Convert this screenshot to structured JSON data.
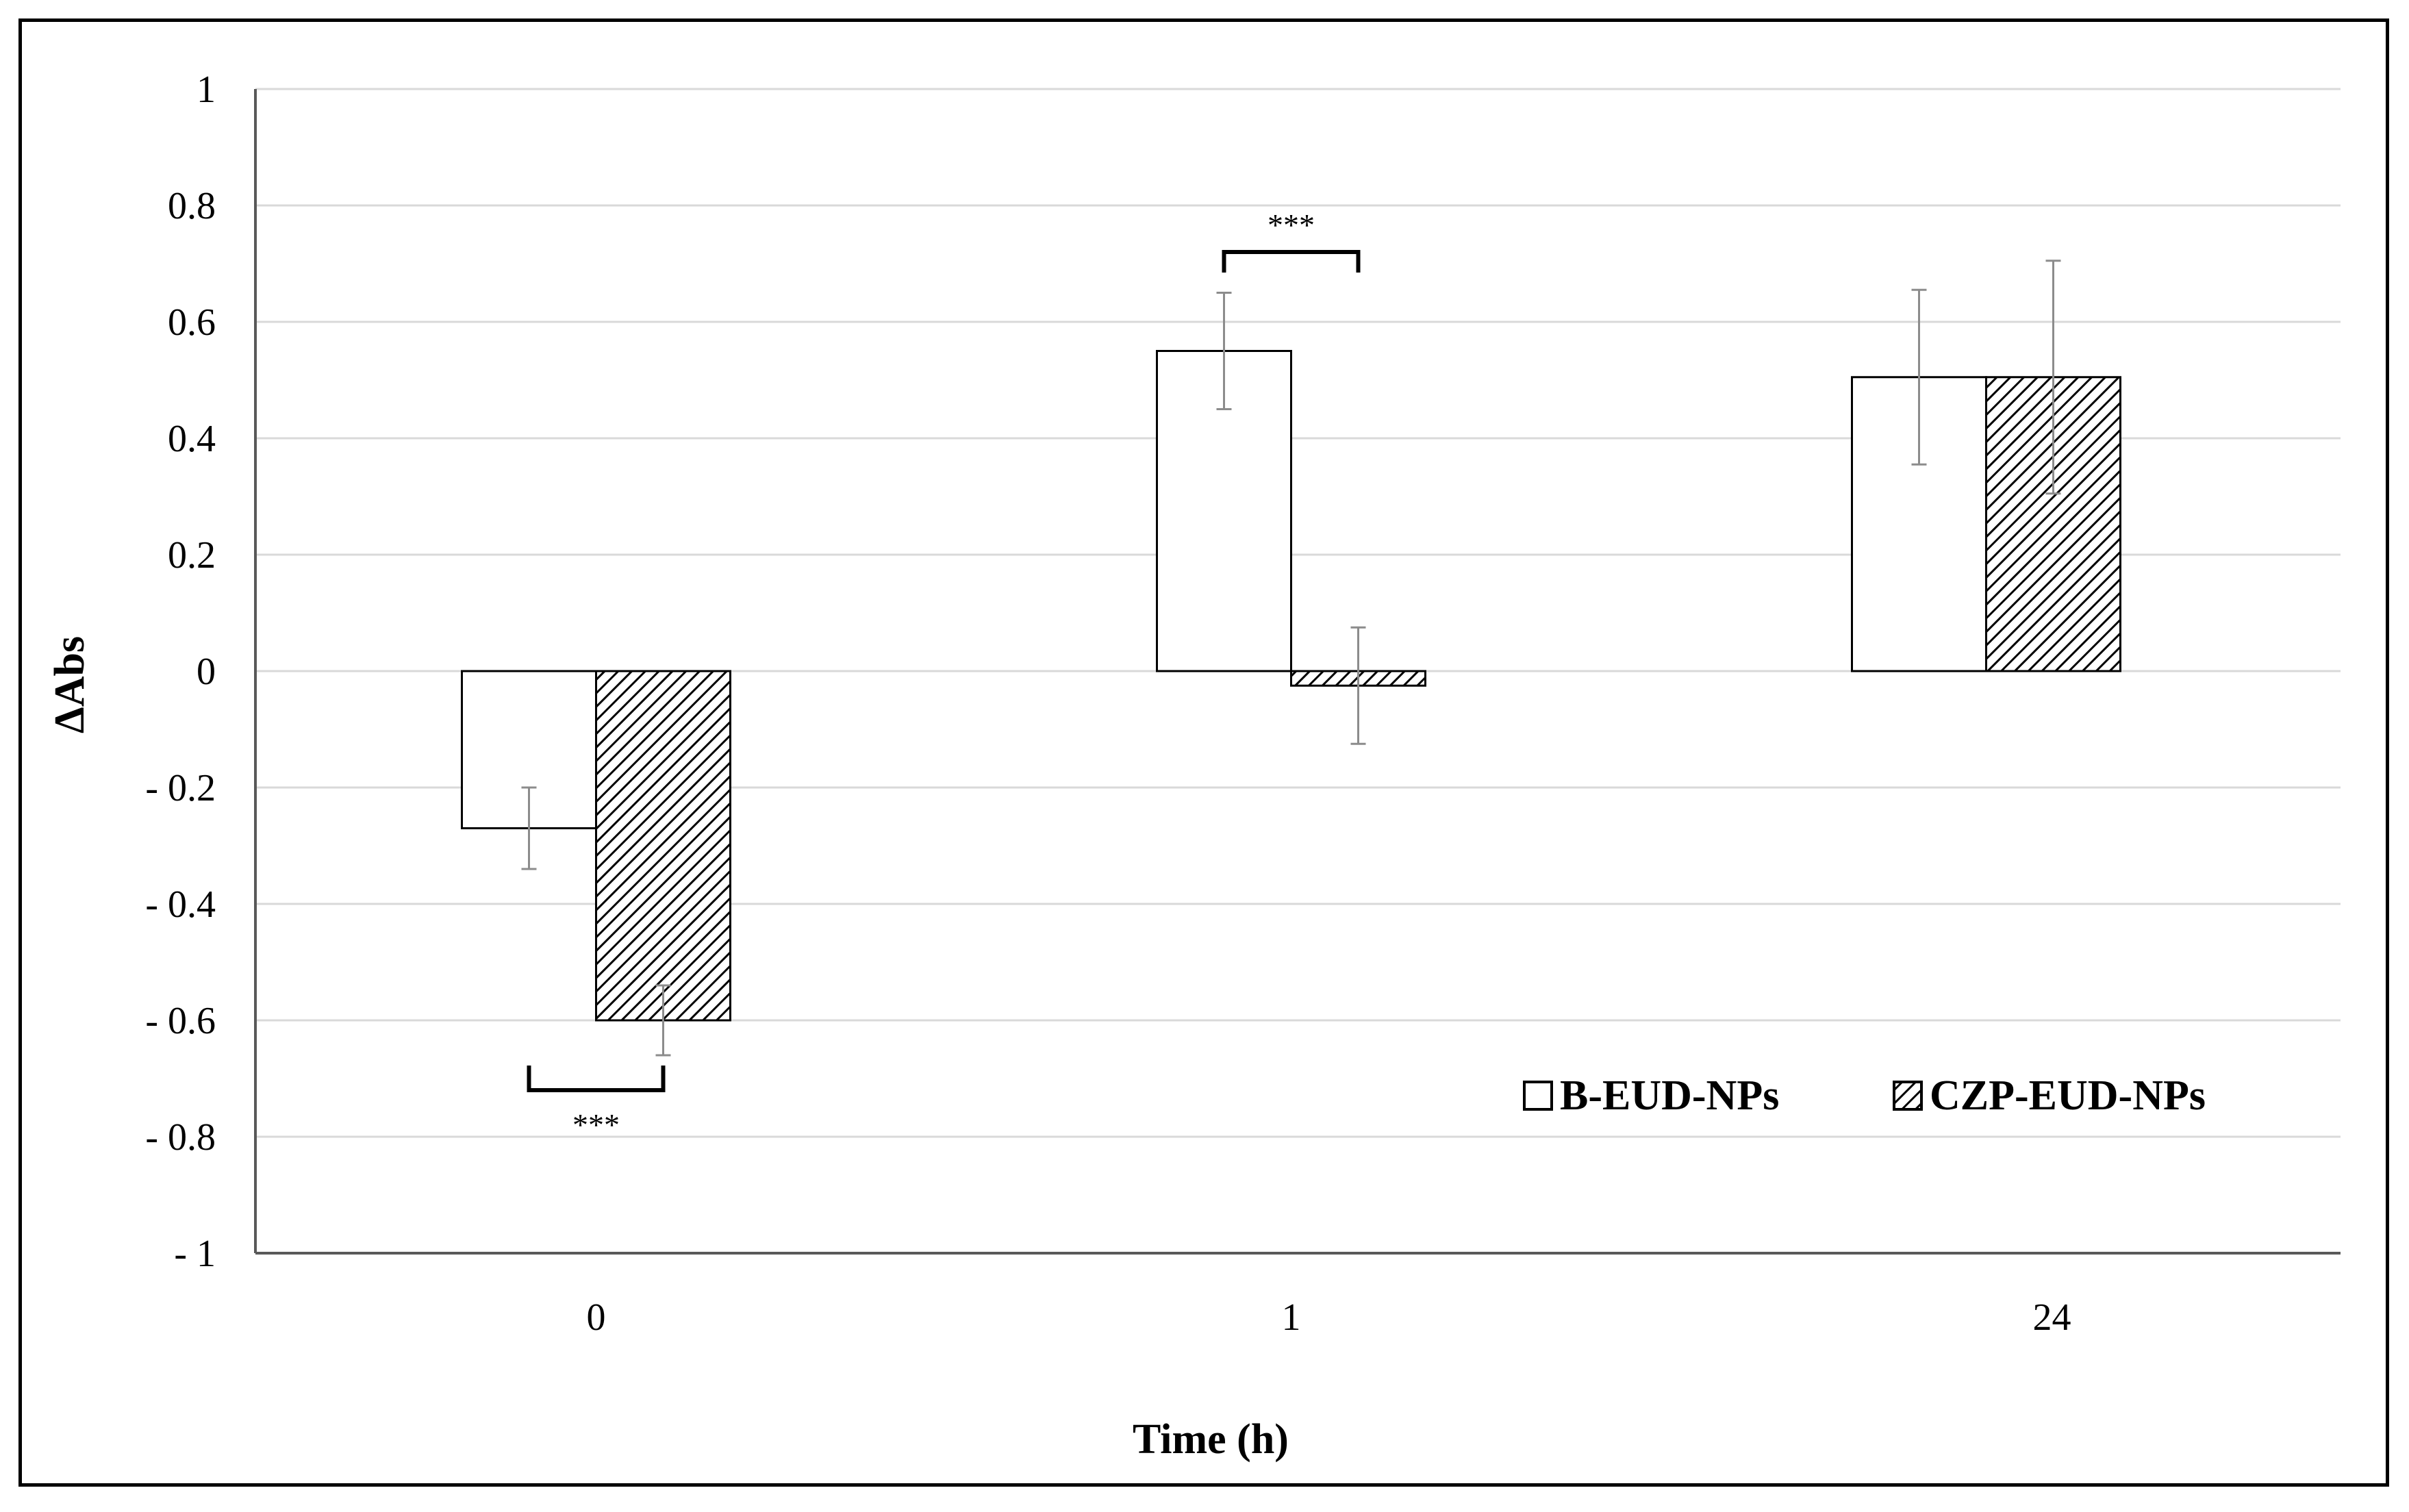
{
  "chart_data": {
    "type": "bar",
    "title": "",
    "xlabel": "Time (h)",
    "ylabel": "ΔAbs",
    "categories": [
      "0",
      "1",
      "24"
    ],
    "ylim": [
      -1,
      1
    ],
    "yticks": [
      1,
      0.8,
      0.6,
      0.4,
      0.2,
      0,
      -0.2,
      -0.4,
      -0.6,
      -0.8,
      -1
    ],
    "ytick_labels": [
      "1",
      "0.8",
      "0.6",
      "0.4",
      "0.2",
      "0",
      "- 0.2",
      "- 0.4",
      "- 0.6",
      "- 0.8",
      "- 1"
    ],
    "grid": true,
    "legend_position": "bottom-right",
    "series": [
      {
        "name": "B-EUD-NPs",
        "fill": "white",
        "values": [
          -0.27,
          0.55,
          0.505
        ],
        "errors": [
          0.07,
          0.1,
          0.15
        ]
      },
      {
        "name": "CZP-EUD-NPs",
        "fill": "hatched",
        "values": [
          -0.6,
          -0.025,
          0.505
        ],
        "errors": [
          0.06,
          0.1,
          0.2
        ]
      }
    ],
    "significance": [
      {
        "category_index": 0,
        "label": "***",
        "side": "below"
      },
      {
        "category_index": 1,
        "label": "***",
        "side": "above"
      }
    ],
    "colors": {
      "bar_edge": "#000000",
      "hatch": "#000000",
      "grid": "#d9d9d9",
      "axis": "#595959",
      "error_bar": "#8c8c8c"
    }
  }
}
